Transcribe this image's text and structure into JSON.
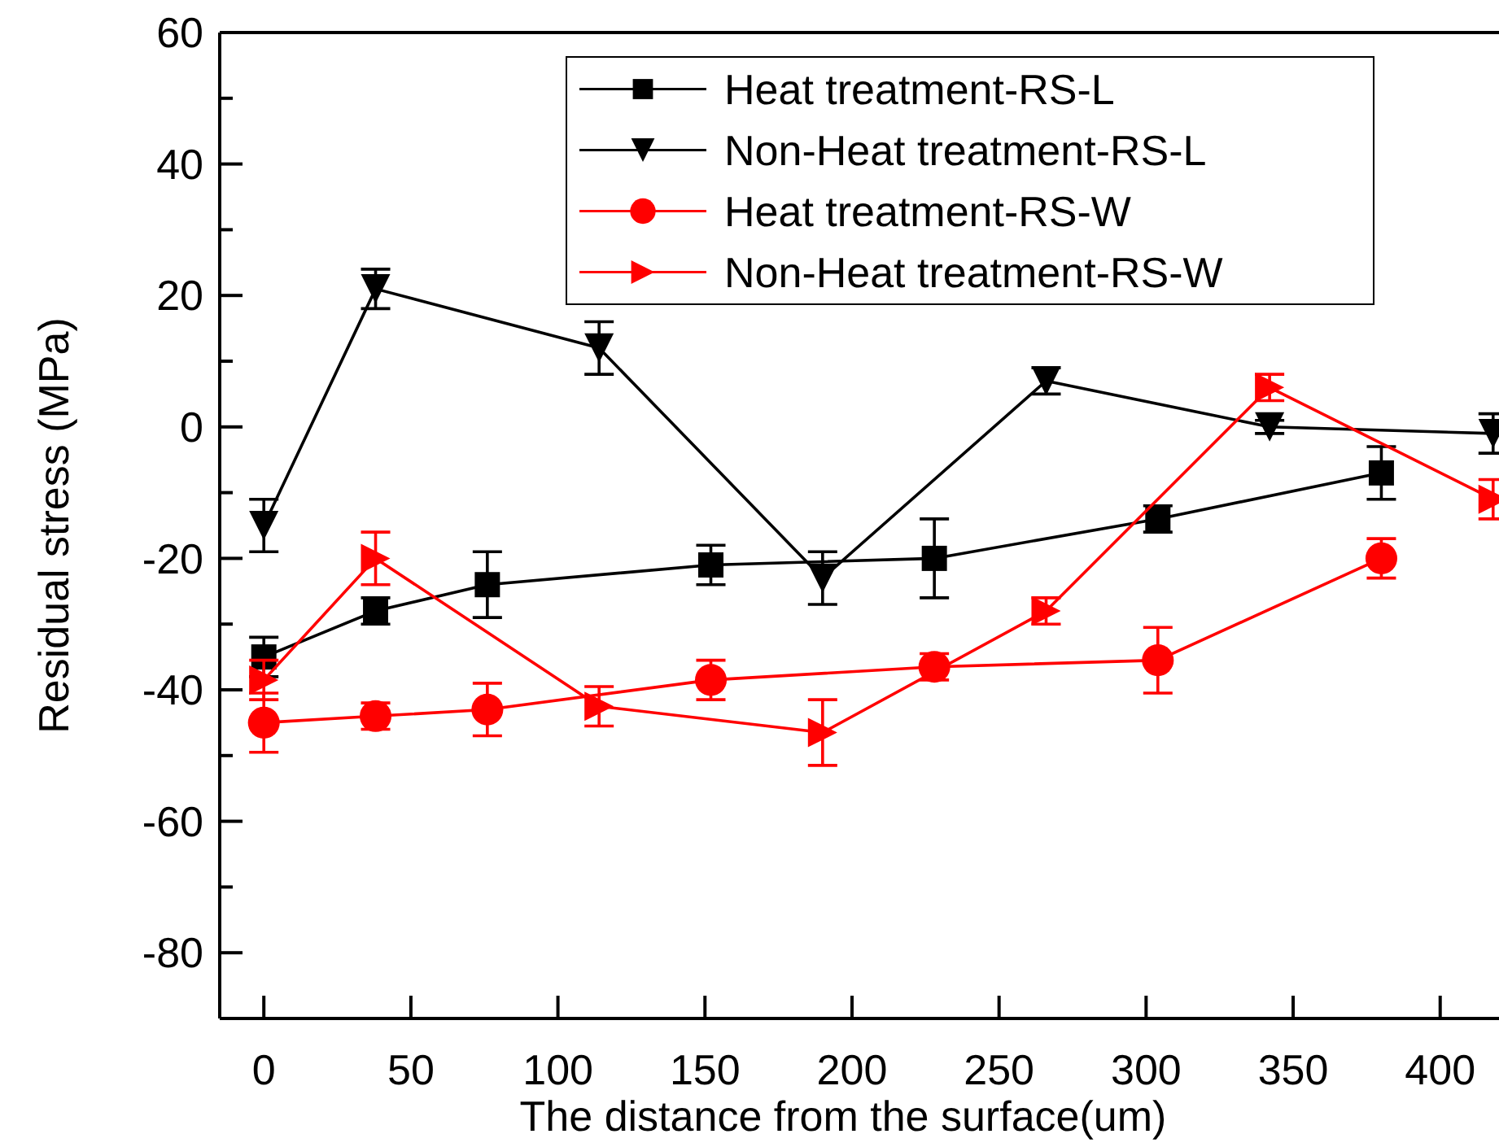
{
  "chart_data": {
    "type": "line",
    "xlabel": "The distance from the surface(um)",
    "ylabel": "Residual stress (MPa)",
    "xlim": [
      -15,
      420
    ],
    "xticks": [
      0,
      50,
      100,
      150,
      200,
      250,
      300,
      350,
      400
    ],
    "ylim": [
      -90,
      60
    ],
    "yticks": [
      {
        "value": -90,
        "label": null
      },
      -80,
      {
        "value": -70,
        "label": null
      },
      -60,
      {
        "value": -50,
        "label": null
      },
      -40,
      {
        "value": -30,
        "label": null
      },
      -20,
      {
        "value": -10,
        "label": null
      },
      0,
      {
        "value": 10,
        "label": null
      },
      20,
      {
        "value": 30,
        "label": null
      },
      40,
      {
        "value": 50,
        "label": null
      },
      60
    ],
    "grid": false,
    "legend": "top right",
    "line_style": "solid",
    "series": [
      {
        "name": "Heat treatment-RS-L",
        "color": "#000000",
        "marker": "square",
        "x": [
          0,
          38,
          76,
          152,
          228,
          304,
          380
        ],
        "values": [
          -35,
          -28,
          -24,
          -21,
          -20,
          -14,
          -7
        ],
        "errors": [
          3,
          2,
          5,
          3,
          6,
          2,
          4
        ]
      },
      {
        "name": "Non-Heat treatment-RS-L",
        "color": "#000000",
        "marker": "triangle-down",
        "x": [
          0,
          38,
          114,
          190,
          266,
          342,
          418
        ],
        "values": [
          -15,
          21,
          12,
          -23,
          7,
          0,
          -1
        ],
        "errors": [
          4,
          3,
          4,
          4,
          2,
          1,
          3
        ]
      },
      {
        "name": "Heat treatment-RS-W",
        "color": "#ff0000",
        "marker": "circle",
        "x": [
          0,
          38,
          76,
          152,
          228,
          304,
          380
        ],
        "values": [
          -45,
          -44,
          -43,
          -38.5,
          -36.5,
          -35.5,
          -20
        ],
        "errors": [
          4.5,
          2,
          4,
          3,
          2,
          5,
          3
        ]
      },
      {
        "name": "Non-Heat treatment-RS-W",
        "color": "#ff0000",
        "marker": "triangle-right",
        "x": [
          0,
          38,
          114,
          190,
          266,
          342,
          418
        ],
        "values": [
          -38.5,
          -20,
          -42.5,
          -46.5,
          -28,
          6,
          -11
        ],
        "errors": [
          3,
          4,
          3,
          5,
          2,
          2,
          3
        ]
      }
    ]
  }
}
